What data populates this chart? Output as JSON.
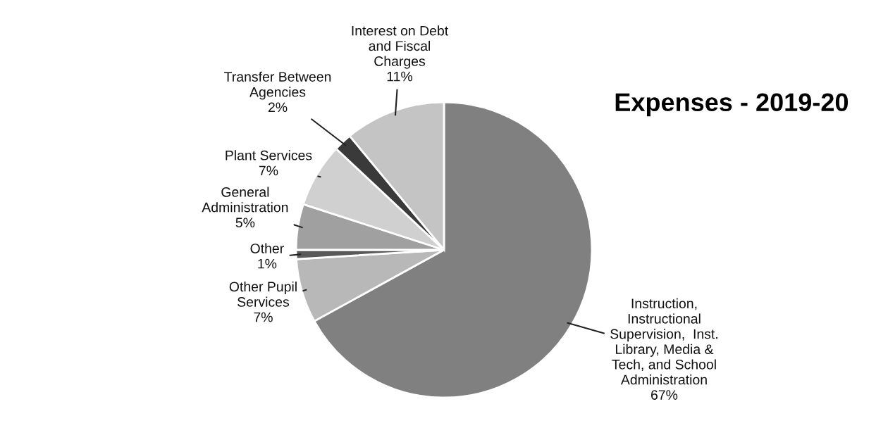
{
  "chart_data": {
    "type": "pie",
    "title": "Expenses - 2019-20",
    "categories": [
      "Instruction,\nInstructional\nSupervision,  Inst.\nLibrary, Media &\nTech, and School\nAdministration",
      "Other Pupil\nServices",
      "Other",
      "General\nAdministration",
      "Plant Services",
      "Transfer Between\nAgencies",
      "Interest on Debt\nand Fiscal\nCharges"
    ],
    "values": [
      67,
      7,
      1,
      5,
      7,
      2,
      11
    ],
    "value_labels": [
      "67%",
      "7%",
      "1%",
      "5%",
      "7%",
      "2%",
      "11%"
    ],
    "colors": [
      "#808080",
      "#b8b8b8",
      "#595959",
      "#a0a0a0",
      "#d0d0d0",
      "#3a3a3a",
      "#c4c4c4"
    ],
    "legend": false
  }
}
